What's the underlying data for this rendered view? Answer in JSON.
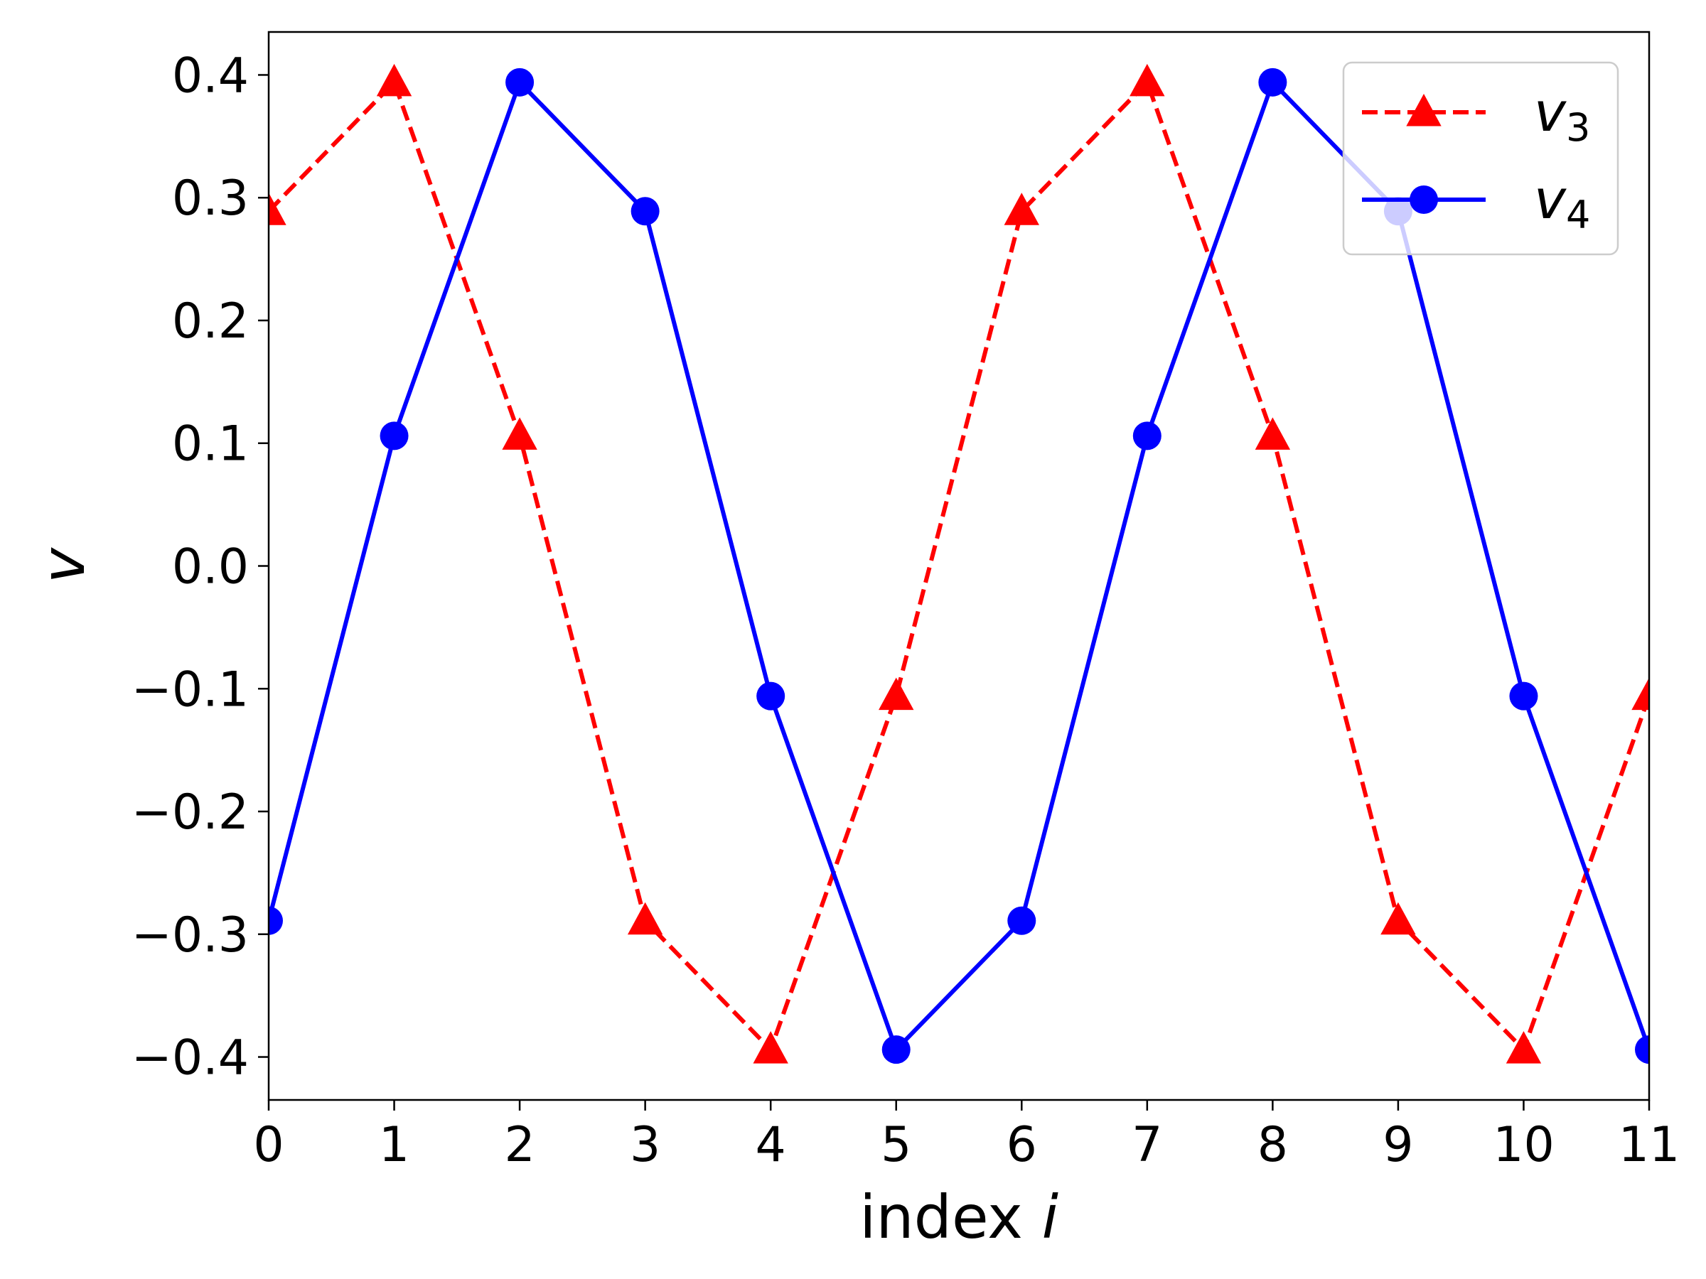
{
  "chart_data": {
    "type": "line",
    "xlabel": "index",
    "xlabel_var": "i",
    "ylabel": "v",
    "xlim": [
      0,
      11
    ],
    "ylim": [
      -0.435,
      0.435
    ],
    "x_ticks": [
      0,
      1,
      2,
      3,
      4,
      5,
      6,
      7,
      8,
      9,
      10,
      11
    ],
    "y_ticks": [
      0.4,
      0.3,
      0.2,
      0.1,
      0.0,
      -0.1,
      -0.2,
      -0.3,
      -0.4
    ],
    "y_tick_labels": [
      "0.4",
      "0.3",
      "0.2",
      "0.1",
      "0.0",
      "−0.1",
      "−0.2",
      "−0.3",
      "−0.4"
    ],
    "grid": false,
    "legend_position": "top-right",
    "x": [
      0,
      1,
      2,
      3,
      4,
      5,
      6,
      7,
      8,
      9,
      10,
      11
    ],
    "series": [
      {
        "name": "v",
        "subscript": "3",
        "color": "#ff0000",
        "line_style": "dashed",
        "marker": "triangle",
        "values": [
          0.289,
          0.394,
          0.106,
          -0.289,
          -0.394,
          -0.106,
          0.289,
          0.394,
          0.106,
          -0.289,
          -0.394,
          -0.106
        ]
      },
      {
        "name": "v",
        "subscript": "4",
        "color": "#0000ff",
        "line_style": "solid",
        "marker": "circle",
        "values": [
          -0.289,
          0.106,
          0.394,
          0.289,
          -0.106,
          -0.394,
          -0.289,
          0.106,
          0.394,
          0.289,
          -0.106,
          -0.394
        ]
      }
    ]
  }
}
